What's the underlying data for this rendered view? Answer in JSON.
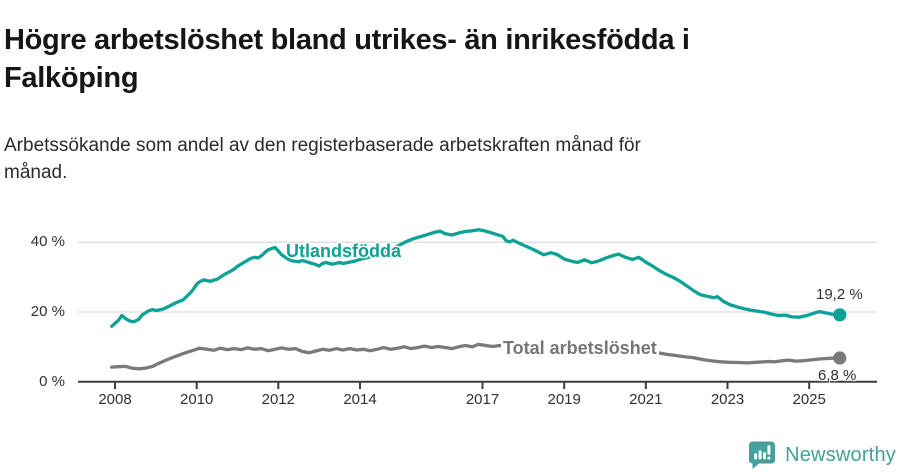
{
  "title": "Högre arbetslöshet bland utrikes- än inrikesfödda i Falköping",
  "subtitle": "Arbetssökande som andel av den registerbaserade arbetskraften månad för månad.",
  "footer": {
    "brand": "Newsworthy",
    "logo_icon": "bar-chart-speech-bubble-icon"
  },
  "colors": {
    "accent_teal": "#0ca295",
    "line_gray": "#7a7a7a",
    "grid": "#dddddd",
    "axis": "#3c3c3c",
    "text_dark": "#161616",
    "brand_teal": "#43a09a"
  },
  "chart_data": {
    "type": "line",
    "title": "Högre arbetslöshet bland utrikes- än inrikesfödda i Falköping",
    "ylabel": "",
    "xlabel": "",
    "unit": "%",
    "grid": "horizontal",
    "x_axis": {
      "range": [
        2007.9,
        2026.1
      ],
      "ticks": [
        "2008",
        "2010",
        "2012",
        "2014",
        "2017",
        "2019",
        "2021",
        "2023",
        "2025"
      ],
      "tick_years": [
        2008,
        2010,
        2012,
        2014,
        2017,
        2019,
        2021,
        2023,
        2025
      ]
    },
    "y_axis": {
      "ylim": [
        0,
        46
      ],
      "ticks": [
        "0 %",
        "20 %",
        "40 %"
      ],
      "tick_values": [
        0,
        20,
        40
      ]
    },
    "series": [
      {
        "name": "Utlandsfödda",
        "color": "#0ca295",
        "end_label": "19,2 %",
        "end_value": 19.2,
        "points": [
          [
            2007.92,
            15.9
          ],
          [
            2008.08,
            17.6
          ],
          [
            2008.17,
            19.0
          ],
          [
            2008.25,
            18.2
          ],
          [
            2008.33,
            17.6
          ],
          [
            2008.42,
            17.2
          ],
          [
            2008.5,
            17.4
          ],
          [
            2008.58,
            17.9
          ],
          [
            2008.67,
            19.2
          ],
          [
            2008.83,
            20.4
          ],
          [
            2008.92,
            20.7
          ],
          [
            2009.0,
            20.4
          ],
          [
            2009.17,
            20.8
          ],
          [
            2009.33,
            21.7
          ],
          [
            2009.5,
            22.7
          ],
          [
            2009.67,
            23.5
          ],
          [
            2009.83,
            25.3
          ],
          [
            2009.92,
            26.5
          ],
          [
            2010.0,
            28.0
          ],
          [
            2010.08,
            28.7
          ],
          [
            2010.17,
            29.2
          ],
          [
            2010.33,
            28.8
          ],
          [
            2010.5,
            29.4
          ],
          [
            2010.58,
            30.0
          ],
          [
            2010.67,
            30.7
          ],
          [
            2010.83,
            31.7
          ],
          [
            2010.92,
            32.3
          ],
          [
            2011.0,
            33.1
          ],
          [
            2011.17,
            34.3
          ],
          [
            2011.33,
            35.4
          ],
          [
            2011.42,
            35.7
          ],
          [
            2011.5,
            35.5
          ],
          [
            2011.58,
            36.1
          ],
          [
            2011.67,
            37.1
          ],
          [
            2011.75,
            37.8
          ],
          [
            2011.83,
            38.2
          ],
          [
            2011.92,
            38.5
          ],
          [
            2012.0,
            37.5
          ],
          [
            2012.08,
            36.4
          ],
          [
            2012.17,
            35.7
          ],
          [
            2012.25,
            35.1
          ],
          [
            2012.33,
            34.7
          ],
          [
            2012.5,
            34.4
          ],
          [
            2012.58,
            34.8
          ],
          [
            2012.67,
            34.5
          ],
          [
            2012.75,
            34.2
          ],
          [
            2012.83,
            33.9
          ],
          [
            2012.92,
            33.6
          ],
          [
            2013.0,
            33.2
          ],
          [
            2013.08,
            33.9
          ],
          [
            2013.17,
            34.2
          ],
          [
            2013.25,
            33.9
          ],
          [
            2013.33,
            33.7
          ],
          [
            2013.42,
            34.0
          ],
          [
            2013.5,
            34.2
          ],
          [
            2013.58,
            33.9
          ],
          [
            2013.67,
            34.1
          ],
          [
            2013.83,
            34.5
          ],
          [
            2014.0,
            35.1
          ],
          [
            2014.17,
            35.6
          ],
          [
            2014.33,
            36.1
          ],
          [
            2014.5,
            36.8
          ],
          [
            2014.67,
            37.4
          ],
          [
            2014.83,
            38.3
          ],
          [
            2015.0,
            39.4
          ],
          [
            2015.17,
            40.4
          ],
          [
            2015.33,
            41.1
          ],
          [
            2015.5,
            41.7
          ],
          [
            2015.67,
            42.3
          ],
          [
            2015.83,
            42.9
          ],
          [
            2015.96,
            43.2
          ],
          [
            2016.08,
            42.5
          ],
          [
            2016.25,
            42.1
          ],
          [
            2016.42,
            42.7
          ],
          [
            2016.58,
            43.1
          ],
          [
            2016.75,
            43.3
          ],
          [
            2016.9,
            43.6
          ],
          [
            2017.0,
            43.4
          ],
          [
            2017.17,
            42.9
          ],
          [
            2017.33,
            42.3
          ],
          [
            2017.5,
            41.7
          ],
          [
            2017.58,
            40.4
          ],
          [
            2017.67,
            40.1
          ],
          [
            2017.75,
            40.6
          ],
          [
            2017.92,
            39.6
          ],
          [
            2018.08,
            38.8
          ],
          [
            2018.25,
            37.9
          ],
          [
            2018.42,
            36.9
          ],
          [
            2018.5,
            36.4
          ],
          [
            2018.67,
            37.0
          ],
          [
            2018.83,
            36.5
          ],
          [
            2019.0,
            35.2
          ],
          [
            2019.17,
            34.6
          ],
          [
            2019.33,
            34.2
          ],
          [
            2019.5,
            35.0
          ],
          [
            2019.67,
            34.1
          ],
          [
            2019.83,
            34.6
          ],
          [
            2020.0,
            35.4
          ],
          [
            2020.17,
            36.1
          ],
          [
            2020.33,
            36.6
          ],
          [
            2020.5,
            35.7
          ],
          [
            2020.67,
            35.1
          ],
          [
            2020.83,
            35.7
          ],
          [
            2021.0,
            34.3
          ],
          [
            2021.17,
            33.1
          ],
          [
            2021.33,
            31.9
          ],
          [
            2021.5,
            30.8
          ],
          [
            2021.67,
            29.9
          ],
          [
            2021.83,
            28.9
          ],
          [
            2022.0,
            27.5
          ],
          [
            2022.17,
            26.1
          ],
          [
            2022.33,
            25.0
          ],
          [
            2022.5,
            24.5
          ],
          [
            2022.67,
            24.1
          ],
          [
            2022.75,
            24.4
          ],
          [
            2022.92,
            22.9
          ],
          [
            2023.08,
            22.0
          ],
          [
            2023.25,
            21.4
          ],
          [
            2023.42,
            20.9
          ],
          [
            2023.58,
            20.5
          ],
          [
            2023.75,
            20.2
          ],
          [
            2023.92,
            19.9
          ],
          [
            2024.08,
            19.4
          ],
          [
            2024.25,
            19.0
          ],
          [
            2024.42,
            19.1
          ],
          [
            2024.58,
            18.6
          ],
          [
            2024.75,
            18.5
          ],
          [
            2024.92,
            18.9
          ],
          [
            2025.08,
            19.5
          ],
          [
            2025.25,
            20.1
          ],
          [
            2025.42,
            19.7
          ],
          [
            2025.58,
            19.3
          ],
          [
            2025.75,
            19.2
          ]
        ]
      },
      {
        "name": "Total arbetslöshet",
        "color": "#7a7a7a",
        "end_label": "6,8 %",
        "end_value": 6.8,
        "points": [
          [
            2007.92,
            4.2
          ],
          [
            2008.08,
            4.3
          ],
          [
            2008.25,
            4.4
          ],
          [
            2008.42,
            3.9
          ],
          [
            2008.58,
            3.7
          ],
          [
            2008.75,
            3.9
          ],
          [
            2008.92,
            4.4
          ],
          [
            2009.08,
            5.3
          ],
          [
            2009.25,
            6.2
          ],
          [
            2009.42,
            7.0
          ],
          [
            2009.58,
            7.7
          ],
          [
            2009.75,
            8.4
          ],
          [
            2009.92,
            9.0
          ],
          [
            2010.08,
            9.6
          ],
          [
            2010.25,
            9.3
          ],
          [
            2010.42,
            9.0
          ],
          [
            2010.58,
            9.6
          ],
          [
            2010.75,
            9.2
          ],
          [
            2010.92,
            9.5
          ],
          [
            2011.08,
            9.2
          ],
          [
            2011.25,
            9.7
          ],
          [
            2011.42,
            9.3
          ],
          [
            2011.58,
            9.5
          ],
          [
            2011.75,
            8.9
          ],
          [
            2011.92,
            9.3
          ],
          [
            2012.08,
            9.7
          ],
          [
            2012.25,
            9.3
          ],
          [
            2012.42,
            9.5
          ],
          [
            2012.58,
            8.7
          ],
          [
            2012.75,
            8.3
          ],
          [
            2012.92,
            8.8
          ],
          [
            2013.08,
            9.3
          ],
          [
            2013.25,
            9.0
          ],
          [
            2013.42,
            9.5
          ],
          [
            2013.58,
            9.1
          ],
          [
            2013.75,
            9.5
          ],
          [
            2013.92,
            9.1
          ],
          [
            2014.08,
            9.3
          ],
          [
            2014.25,
            8.9
          ],
          [
            2014.42,
            9.3
          ],
          [
            2014.58,
            9.8
          ],
          [
            2014.75,
            9.3
          ],
          [
            2014.92,
            9.6
          ],
          [
            2015.08,
            10.0
          ],
          [
            2015.25,
            9.5
          ],
          [
            2015.42,
            9.8
          ],
          [
            2015.58,
            10.2
          ],
          [
            2015.75,
            9.8
          ],
          [
            2015.92,
            10.1
          ],
          [
            2016.08,
            9.8
          ],
          [
            2016.25,
            9.5
          ],
          [
            2016.42,
            10.0
          ],
          [
            2016.58,
            10.4
          ],
          [
            2016.75,
            10.0
          ],
          [
            2016.9,
            10.7
          ],
          [
            2017.08,
            10.4
          ],
          [
            2017.25,
            10.1
          ],
          [
            2017.42,
            10.4
          ],
          [
            2017.58,
            10.1
          ],
          [
            2017.75,
            9.8
          ],
          [
            2018.0,
            9.4
          ],
          [
            2018.25,
            9.1
          ],
          [
            2018.5,
            8.8
          ],
          [
            2018.75,
            8.6
          ],
          [
            2019.0,
            8.4
          ],
          [
            2019.25,
            8.1
          ],
          [
            2019.5,
            8.0
          ],
          [
            2019.75,
            7.9
          ],
          [
            2020.0,
            8.1
          ],
          [
            2020.25,
            9.0
          ],
          [
            2020.5,
            9.4
          ],
          [
            2020.75,
            9.2
          ],
          [
            2021.0,
            8.9
          ],
          [
            2021.25,
            8.4
          ],
          [
            2021.5,
            7.9
          ],
          [
            2021.75,
            7.5
          ],
          [
            2022.0,
            7.1
          ],
          [
            2022.17,
            6.9
          ],
          [
            2022.42,
            6.3
          ],
          [
            2022.67,
            5.9
          ],
          [
            2022.83,
            5.7
          ],
          [
            2023.0,
            5.6
          ],
          [
            2023.25,
            5.5
          ],
          [
            2023.5,
            5.4
          ],
          [
            2023.75,
            5.6
          ],
          [
            2024.0,
            5.8
          ],
          [
            2024.17,
            5.7
          ],
          [
            2024.33,
            6.0
          ],
          [
            2024.5,
            6.2
          ],
          [
            2024.67,
            5.9
          ],
          [
            2024.83,
            6.0
          ],
          [
            2025.0,
            6.2
          ],
          [
            2025.25,
            6.5
          ],
          [
            2025.5,
            6.7
          ],
          [
            2025.75,
            6.8
          ]
        ]
      }
    ]
  }
}
